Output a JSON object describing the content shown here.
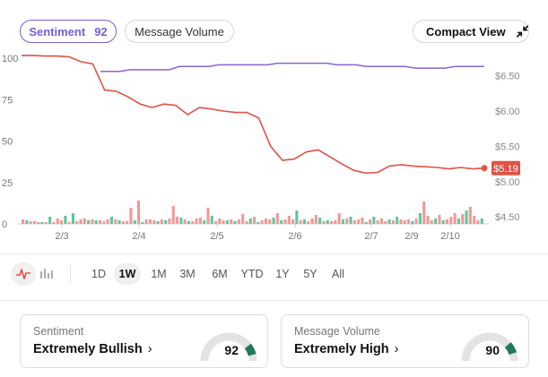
{
  "toggles": {
    "sentiment_label": "Sentiment",
    "sentiment_value": "92",
    "volume_label": "Message Volume",
    "compact_label": "Compact View"
  },
  "ranges": [
    "1D",
    "1W",
    "1M",
    "3M",
    "6M",
    "YTD",
    "1Y",
    "5Y",
    "All"
  ],
  "active_range": "1W",
  "cards": {
    "sentiment": {
      "title": "Sentiment",
      "value": "Extremely Bullish",
      "score": "92",
      "chevron": "›"
    },
    "volume": {
      "title": "Message Volume",
      "value": "Extremely High",
      "score": "90",
      "chevron": "›"
    }
  },
  "colors": {
    "sentiment_line": "#8a63d2",
    "price_line": "#e05245",
    "bar_green": "#5cc9a0",
    "bar_red": "#f09a98",
    "gauge_fill": "#1f7a55",
    "gauge_track": "#e3e3e3",
    "price_badge": "#e05245"
  },
  "icons": {
    "compact": "collapse-arrows-icon",
    "chart_line": "line-chart-icon",
    "chart_bar": "bar-chart-icon"
  },
  "chart_data": {
    "type": "line",
    "x_labels": [
      "2/3",
      "2/4",
      "2/5",
      "2/6",
      "2/7",
      "2/9",
      "2/10"
    ],
    "left_axis": {
      "ticks": [
        0,
        25,
        50,
        75,
        100
      ],
      "range": [
        0,
        100
      ]
    },
    "right_axis": {
      "ticks": [
        "$4.50",
        "$5.00",
        "$5.50",
        "$6.00",
        "$6.50"
      ],
      "range": [
        4.4,
        6.75
      ]
    },
    "current_price_label": "$5.19",
    "series": [
      {
        "values": [
          92,
          92,
          92,
          93,
          93,
          93,
          93,
          93,
          95,
          95,
          95,
          95,
          96,
          96,
          96,
          96,
          96,
          96,
          97,
          97,
          97,
          97,
          97,
          97,
          96,
          96,
          96,
          95,
          95,
          95,
          95,
          95,
          94,
          94,
          94,
          94,
          95,
          95,
          95,
          95
        ]
      },
      {
        "values": [
          6.79,
          6.79,
          6.78,
          6.78,
          6.77,
          6.7,
          6.67,
          6.3,
          6.28,
          6.2,
          6.1,
          6.05,
          6.1,
          6.08,
          5.95,
          6.05,
          6.03,
          6.0,
          5.98,
          5.98,
          5.9,
          5.5,
          5.3,
          5.32,
          5.42,
          5.45,
          5.35,
          5.25,
          5.16,
          5.12,
          5.13,
          5.22,
          5.24,
          5.22,
          5.21,
          5.2,
          5.18,
          5.2,
          5.18,
          5.19
        ]
      },
      {
        "values": [
          5,
          4,
          3,
          3,
          2,
          2,
          2,
          8,
          2,
          6,
          4,
          9,
          2,
          12,
          3,
          5,
          6,
          4,
          5,
          4,
          4,
          3,
          5,
          8,
          5,
          4,
          3,
          3,
          18,
          4,
          26,
          2,
          5,
          5,
          4,
          3,
          5,
          4,
          6,
          20,
          8,
          7,
          5,
          3,
          3,
          6,
          7,
          4,
          18,
          9,
          3,
          6,
          4,
          4,
          5,
          3,
          5,
          11,
          3,
          6,
          8,
          2,
          4,
          6,
          5,
          7,
          12,
          4,
          5,
          9,
          5,
          15,
          4,
          5,
          3,
          6,
          10,
          7,
          3,
          4,
          3,
          4,
          12,
          5,
          6,
          8,
          4,
          5,
          7,
          2,
          5,
          8,
          4,
          6,
          3,
          5,
          4,
          8,
          5,
          4,
          5,
          3,
          6,
          12,
          25,
          9,
          4,
          6,
          10,
          4,
          5,
          8,
          12,
          6,
          11,
          15,
          19,
          9,
          4,
          6
        ]
      }
    ]
  }
}
